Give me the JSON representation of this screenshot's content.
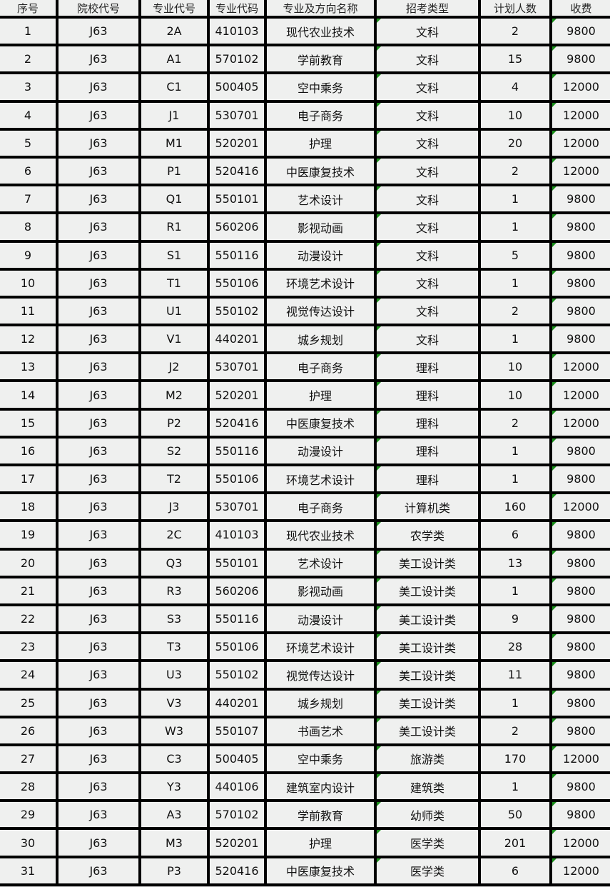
{
  "colors": {
    "background": "#eff0ef",
    "grid": "#000000",
    "comment_marker": "#1a8f1a"
  },
  "headers": [
    "序号",
    "院校代号",
    "专业代号",
    "专业代码",
    "专业及方向名称",
    "招考类型",
    "计划人数",
    "收费"
  ],
  "rows": [
    [
      "1",
      "J63",
      "2A",
      "410103",
      "现代农业技术",
      "文科",
      "2",
      "9800"
    ],
    [
      "2",
      "J63",
      "A1",
      "570102",
      "学前教育",
      "文科",
      "15",
      "9800"
    ],
    [
      "3",
      "J63",
      "C1",
      "500405",
      "空中乘务",
      "文科",
      "4",
      "12000"
    ],
    [
      "4",
      "J63",
      "J1",
      "530701",
      "电子商务",
      "文科",
      "10",
      "12000"
    ],
    [
      "5",
      "J63",
      "M1",
      "520201",
      "护理",
      "文科",
      "20",
      "12000"
    ],
    [
      "6",
      "J63",
      "P1",
      "520416",
      "中医康复技术",
      "文科",
      "2",
      "12000"
    ],
    [
      "7",
      "J63",
      "Q1",
      "550101",
      "艺术设计",
      "文科",
      "1",
      "9800"
    ],
    [
      "8",
      "J63",
      "R1",
      "560206",
      "影视动画",
      "文科",
      "1",
      "9800"
    ],
    [
      "9",
      "J63",
      "S1",
      "550116",
      "动漫设计",
      "文科",
      "5",
      "9800"
    ],
    [
      "10",
      "J63",
      "T1",
      "550106",
      "环境艺术设计",
      "文科",
      "1",
      "9800"
    ],
    [
      "11",
      "J63",
      "U1",
      "550102",
      "视觉传达设计",
      "文科",
      "2",
      "9800"
    ],
    [
      "12",
      "J63",
      "V1",
      "440201",
      "城乡规划",
      "文科",
      "1",
      "9800"
    ],
    [
      "13",
      "J63",
      "J2",
      "530701",
      "电子商务",
      "理科",
      "10",
      "12000"
    ],
    [
      "14",
      "J63",
      "M2",
      "520201",
      "护理",
      "理科",
      "10",
      "12000"
    ],
    [
      "15",
      "J63",
      "P2",
      "520416",
      "中医康复技术",
      "理科",
      "2",
      "12000"
    ],
    [
      "16",
      "J63",
      "S2",
      "550116",
      "动漫设计",
      "理科",
      "1",
      "9800"
    ],
    [
      "17",
      "J63",
      "T2",
      "550106",
      "环境艺术设计",
      "理科",
      "1",
      "9800"
    ],
    [
      "18",
      "J63",
      "J3",
      "530701",
      "电子商务",
      "计算机类",
      "160",
      "12000"
    ],
    [
      "19",
      "J63",
      "2C",
      "410103",
      "现代农业技术",
      "农学类",
      "6",
      "9800"
    ],
    [
      "20",
      "J63",
      "Q3",
      "550101",
      "艺术设计",
      "美工设计类",
      "13",
      "9800"
    ],
    [
      "21",
      "J63",
      "R3",
      "560206",
      "影视动画",
      "美工设计类",
      "1",
      "9800"
    ],
    [
      "22",
      "J63",
      "S3",
      "550116",
      "动漫设计",
      "美工设计类",
      "9",
      "9800"
    ],
    [
      "23",
      "J63",
      "T3",
      "550106",
      "环境艺术设计",
      "美工设计类",
      "28",
      "9800"
    ],
    [
      "24",
      "J63",
      "U3",
      "550102",
      "视觉传达设计",
      "美工设计类",
      "11",
      "9800"
    ],
    [
      "25",
      "J63",
      "V3",
      "440201",
      "城乡规划",
      "美工设计类",
      "1",
      "9800"
    ],
    [
      "26",
      "J63",
      "W3",
      "550107",
      "书画艺术",
      "美工设计类",
      "2",
      "9800"
    ],
    [
      "27",
      "J63",
      "C3",
      "500405",
      "空中乘务",
      "旅游类",
      "170",
      "12000"
    ],
    [
      "28",
      "J63",
      "Y3",
      "440106",
      "建筑室内设计",
      "建筑类",
      "1",
      "9800"
    ],
    [
      "29",
      "J63",
      "A3",
      "570102",
      "学前教育",
      "幼师类",
      "50",
      "9800"
    ],
    [
      "30",
      "J63",
      "M3",
      "520201",
      "护理",
      "医学类",
      "201",
      "12000"
    ],
    [
      "31",
      "J63",
      "P3",
      "520416",
      "中医康复技术",
      "医学类",
      "6",
      "12000"
    ]
  ]
}
